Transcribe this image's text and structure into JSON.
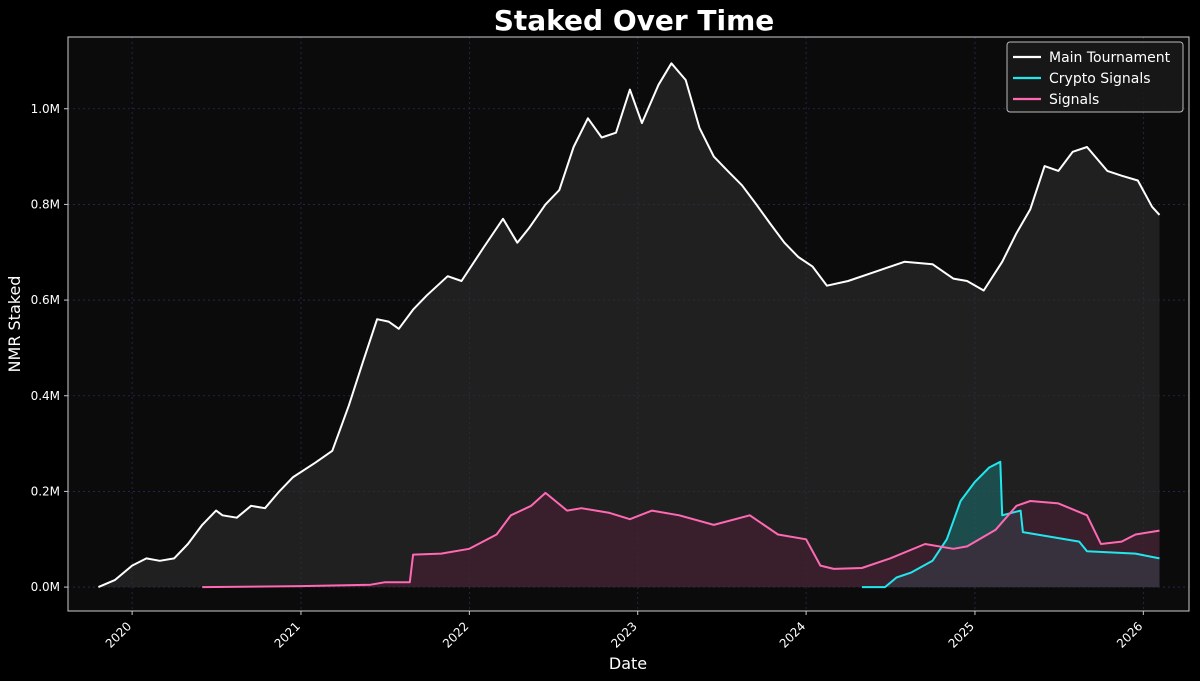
{
  "chart_data": {
    "type": "line",
    "title": "Staked Over Time",
    "xlabel": "Date",
    "ylabel": "NMR Staked",
    "x_range": [
      "2019-08-15",
      "2026-04-10"
    ],
    "ylim": [
      -50000,
      1150000
    ],
    "x_ticks": [
      "2020-01-01",
      "2021-01-01",
      "2022-01-01",
      "2023-01-01",
      "2024-01-01",
      "2025-01-01",
      "2026-01-01"
    ],
    "x_tick_labels": [
      "2020",
      "2021",
      "2022",
      "2023",
      "2024",
      "2025",
      "2026"
    ],
    "y_ticks": [
      0,
      200000,
      400000,
      600000,
      800000,
      1000000
    ],
    "y_tick_labels": [
      "0.0M",
      "0.2M",
      "0.4M",
      "0.6M",
      "0.8M",
      "1.0M"
    ],
    "grid": true,
    "legend_position": "top-right",
    "series": [
      {
        "name": "Main Tournament",
        "color": "#ffffff",
        "fill": "#2e2e2e",
        "points": [
          [
            "2019-10-20",
            0
          ],
          [
            "2019-11-25",
            15000
          ],
          [
            "2020-01-01",
            45000
          ],
          [
            "2020-02-01",
            60000
          ],
          [
            "2020-03-01",
            55000
          ],
          [
            "2020-04-01",
            60000
          ],
          [
            "2020-05-01",
            90000
          ],
          [
            "2020-06-01",
            130000
          ],
          [
            "2020-07-01",
            160000
          ],
          [
            "2020-07-15",
            150000
          ],
          [
            "2020-08-15",
            145000
          ],
          [
            "2020-09-15",
            170000
          ],
          [
            "2020-10-15",
            165000
          ],
          [
            "2020-11-15",
            200000
          ],
          [
            "2020-12-15",
            230000
          ],
          [
            "2021-02-01",
            260000
          ],
          [
            "2021-03-10",
            285000
          ],
          [
            "2021-04-15",
            380000
          ],
          [
            "2021-05-15",
            470000
          ],
          [
            "2021-06-15",
            560000
          ],
          [
            "2021-07-10",
            555000
          ],
          [
            "2021-08-01",
            540000
          ],
          [
            "2021-09-01",
            580000
          ],
          [
            "2021-10-01",
            610000
          ],
          [
            "2021-11-15",
            650000
          ],
          [
            "2021-12-15",
            640000
          ],
          [
            "2022-02-01",
            710000
          ],
          [
            "2022-03-15",
            770000
          ],
          [
            "2022-04-15",
            720000
          ],
          [
            "2022-05-10",
            750000
          ],
          [
            "2022-06-15",
            800000
          ],
          [
            "2022-07-15",
            830000
          ],
          [
            "2022-08-15",
            920000
          ],
          [
            "2022-09-15",
            980000
          ],
          [
            "2022-10-15",
            940000
          ],
          [
            "2022-11-15",
            950000
          ],
          [
            "2022-12-15",
            1040000
          ],
          [
            "2023-01-10",
            970000
          ],
          [
            "2023-02-15",
            1050000
          ],
          [
            "2023-03-15",
            1095000
          ],
          [
            "2023-04-15",
            1060000
          ],
          [
            "2023-05-15",
            960000
          ],
          [
            "2023-06-15",
            900000
          ],
          [
            "2023-07-15",
            870000
          ],
          [
            "2023-08-15",
            840000
          ],
          [
            "2023-09-15",
            800000
          ],
          [
            "2023-10-15",
            760000
          ],
          [
            "2023-11-15",
            720000
          ],
          [
            "2023-12-15",
            690000
          ],
          [
            "2024-01-15",
            670000
          ],
          [
            "2024-02-15",
            630000
          ],
          [
            "2024-04-01",
            640000
          ],
          [
            "2024-06-01",
            660000
          ],
          [
            "2024-08-01",
            680000
          ],
          [
            "2024-10-01",
            675000
          ],
          [
            "2024-11-15",
            645000
          ],
          [
            "2024-12-15",
            640000
          ],
          [
            "2025-01-20",
            620000
          ],
          [
            "2025-03-01",
            680000
          ],
          [
            "2025-04-01",
            740000
          ],
          [
            "2025-05-01",
            790000
          ],
          [
            "2025-06-01",
            880000
          ],
          [
            "2025-07-01",
            870000
          ],
          [
            "2025-08-01",
            910000
          ],
          [
            "2025-09-01",
            920000
          ],
          [
            "2025-10-15",
            870000
          ],
          [
            "2025-11-15",
            860000
          ],
          [
            "2025-12-20",
            850000
          ],
          [
            "2026-01-20",
            795000
          ],
          [
            "2026-02-05",
            778000
          ]
        ]
      },
      {
        "name": "Crypto Signals",
        "color": "#22e6ee",
        "fill": "#1c6a6a",
        "points": [
          [
            "2024-05-01",
            0
          ],
          [
            "2024-06-20",
            0
          ],
          [
            "2024-07-15",
            20000
          ],
          [
            "2024-08-15",
            30000
          ],
          [
            "2024-10-01",
            55000
          ],
          [
            "2024-11-01",
            100000
          ],
          [
            "2024-12-01",
            180000
          ],
          [
            "2025-01-01",
            220000
          ],
          [
            "2025-02-01",
            250000
          ],
          [
            "2025-02-25",
            262000
          ],
          [
            "2025-03-01",
            150000
          ],
          [
            "2025-04-10",
            160000
          ],
          [
            "2025-04-15",
            115000
          ],
          [
            "2025-06-15",
            105000
          ],
          [
            "2025-08-15",
            95000
          ],
          [
            "2025-09-01",
            75000
          ],
          [
            "2025-12-15",
            70000
          ],
          [
            "2026-02-05",
            60000
          ]
        ]
      },
      {
        "name": "Signals",
        "color": "#ff69b4",
        "fill": "#4a1f33",
        "points": [
          [
            "2020-06-01",
            0
          ],
          [
            "2021-01-01",
            2000
          ],
          [
            "2021-06-01",
            5000
          ],
          [
            "2021-07-01",
            10000
          ],
          [
            "2021-08-25",
            10000
          ],
          [
            "2021-09-01",
            68000
          ],
          [
            "2021-11-01",
            70000
          ],
          [
            "2022-01-01",
            80000
          ],
          [
            "2022-03-01",
            110000
          ],
          [
            "2022-04-01",
            150000
          ],
          [
            "2022-05-15",
            170000
          ],
          [
            "2022-06-15",
            197000
          ],
          [
            "2022-08-01",
            160000
          ],
          [
            "2022-09-01",
            165000
          ],
          [
            "2022-11-01",
            155000
          ],
          [
            "2022-12-15",
            142000
          ],
          [
            "2023-02-01",
            160000
          ],
          [
            "2023-04-01",
            150000
          ],
          [
            "2023-06-15",
            130000
          ],
          [
            "2023-09-01",
            150000
          ],
          [
            "2023-11-01",
            110000
          ],
          [
            "2024-01-01",
            100000
          ],
          [
            "2024-02-01",
            45000
          ],
          [
            "2024-03-01",
            38000
          ],
          [
            "2024-05-01",
            40000
          ],
          [
            "2024-07-01",
            60000
          ],
          [
            "2024-09-15",
            90000
          ],
          [
            "2024-11-15",
            80000
          ],
          [
            "2024-12-15",
            85000
          ],
          [
            "2025-02-15",
            120000
          ],
          [
            "2025-04-01",
            170000
          ],
          [
            "2025-05-01",
            180000
          ],
          [
            "2025-07-01",
            175000
          ],
          [
            "2025-09-01",
            150000
          ],
          [
            "2025-10-01",
            90000
          ],
          [
            "2025-11-15",
            95000
          ],
          [
            "2025-12-15",
            110000
          ],
          [
            "2026-02-05",
            118000
          ]
        ]
      }
    ]
  }
}
